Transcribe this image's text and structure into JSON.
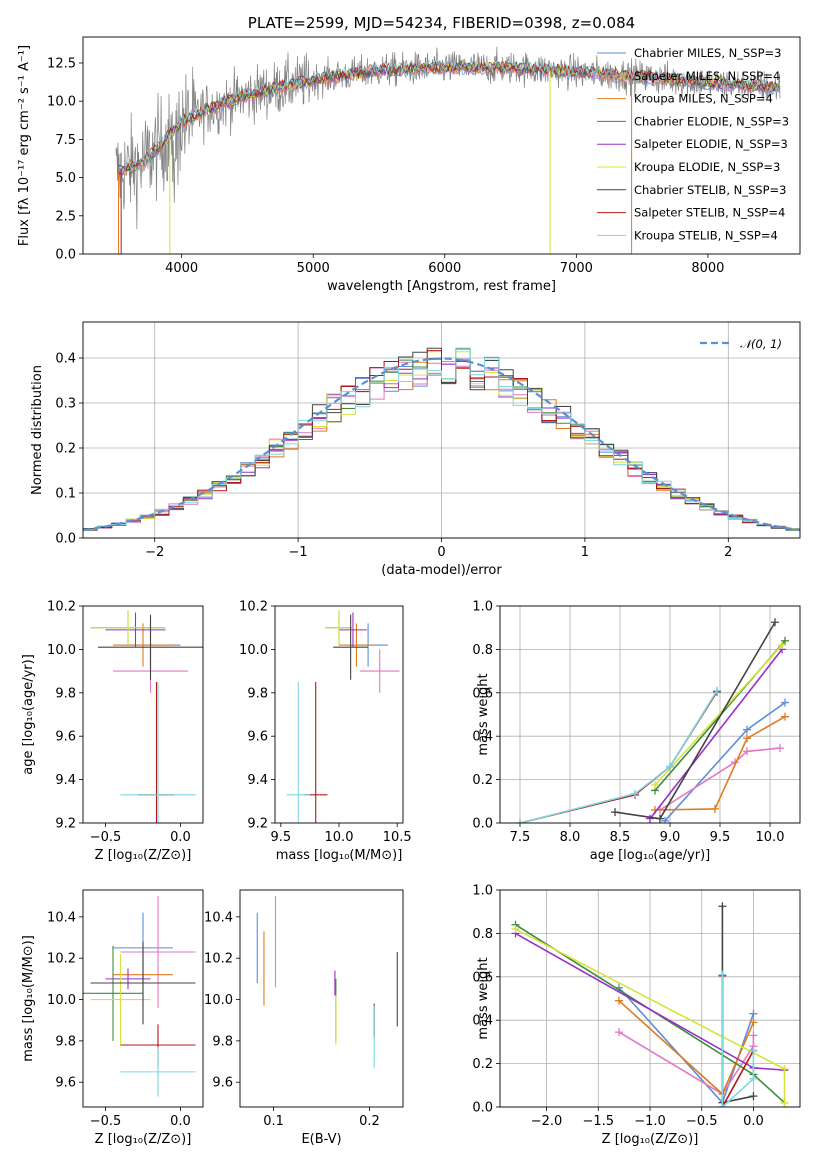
{
  "colors": {
    "chabrier_miles": "#5b8fd6",
    "salpeter_miles": "#e377c2",
    "kroupa_miles": "#e07b1f",
    "chabrier_elodie": "#3d8b3d",
    "salpeter_elodie": "#9b30c7",
    "kroupa_elodie": "#d6e43a",
    "chabrier_stelib": "#444444",
    "salpeter_stelib": "#b01818",
    "kroupa_stelib": "#7fd6e0",
    "observed": "#808080",
    "normal": "#5b8fd6"
  },
  "chart_data": [
    {
      "id": "spectrum",
      "type": "line",
      "title": "PLATE=2599, MJD=54234, FIBERID=0398, z=0.084",
      "xlabel": "wavelength [Angstrom, rest frame]",
      "ylabel": "Flux [fλ 10⁻¹⁷ erg cm⁻² s⁻¹ A⁻¹]",
      "xlim": [
        3250,
        8700
      ],
      "ylim": [
        0,
        14.2
      ],
      "xticks": [
        4000,
        5000,
        6000,
        7000,
        8000
      ],
      "yticks": [
        0.0,
        2.5,
        5.0,
        7.5,
        10.0,
        12.5
      ],
      "legend_position": "right",
      "continuum_points": [
        [
          3500,
          5.3
        ],
        [
          3700,
          5.9
        ],
        [
          3850,
          7.2
        ],
        [
          4000,
          8.6
        ],
        [
          4200,
          9.5
        ],
        [
          4500,
          10.4
        ],
        [
          5000,
          11.4
        ],
        [
          5500,
          12.0
        ],
        [
          6000,
          12.2
        ],
        [
          6500,
          12.2
        ],
        [
          7000,
          11.9
        ],
        [
          7500,
          11.6
        ],
        [
          8000,
          11.2
        ],
        [
          8500,
          10.9
        ]
      ],
      "series": [
        {
          "name": "Chabrier MILES, N_SSP=3",
          "color_key": "chabrier_miles"
        },
        {
          "name": "Salpeter MILES, N_SSP=4",
          "color_key": "salpeter_miles"
        },
        {
          "name": "Kroupa MILES, N_SSP=4",
          "color_key": "kroupa_miles"
        },
        {
          "name": "Chabrier ELODIE, N_SSP=3",
          "color_key": "chabrier_elodie"
        },
        {
          "name": "Salpeter ELODIE, N_SSP=3",
          "color_key": "salpeter_elodie"
        },
        {
          "name": "Kroupa ELODIE, N_SSP=3",
          "color_key": "kroupa_elodie"
        },
        {
          "name": "Chabrier STELIB, N_SSP=3",
          "color_key": "chabrier_stelib"
        },
        {
          "name": "Salpeter STELIB, N_SSP=4",
          "color_key": "salpeter_stelib"
        },
        {
          "name": "Kroupa STELIB, N_SSP=4",
          "color_key": "kroupa_stelib"
        }
      ]
    },
    {
      "id": "residuals",
      "type": "line",
      "title": "",
      "xlabel": "(data-model)/error",
      "ylabel": "Normed distribution",
      "xlim": [
        -2.5,
        2.5
      ],
      "ylim": [
        0,
        0.48
      ],
      "xticks": [
        -2,
        -1,
        0,
        1,
        2
      ],
      "yticks": [
        0.0,
        0.1,
        0.2,
        0.3,
        0.4
      ],
      "grid": true,
      "legend": "𝒩(0, 1)",
      "legend_position": "top-right",
      "histogram_color_keys": [
        "chabrier_miles",
        "salpeter_miles",
        "kroupa_miles",
        "chabrier_elodie",
        "salpeter_elodie",
        "kroupa_elodie",
        "chabrier_stelib",
        "salpeter_stelib",
        "kroupa_stelib"
      ]
    },
    {
      "id": "age_vs_Z",
      "type": "scatter",
      "xlabel": "Z [log₁₀(Z/Z⊙)]",
      "ylabel": "age  [log₁₀(age/yr)]",
      "xlim": [
        -0.65,
        0.15
      ],
      "ylim": [
        9.2,
        10.2
      ],
      "xticks": [
        -0.5,
        0.0
      ],
      "yticks": [
        9.2,
        9.4,
        9.6,
        9.8,
        10.0,
        10.2
      ],
      "points": [
        {
          "key": "chabrier_miles",
          "x": -0.2,
          "y": 10.02,
          "xerr": 0.2,
          "yerr": 0.1
        },
        {
          "key": "salpeter_miles",
          "x": -0.2,
          "y": 9.9,
          "xerr": 0.25,
          "yerr": 0.1
        },
        {
          "key": "kroupa_miles",
          "x": -0.25,
          "y": 10.02,
          "xerr": 0.2,
          "yerr": 0.1
        },
        {
          "key": "chabrier_elodie",
          "x": -0.35,
          "y": 10.1,
          "xerr": 0.25,
          "yerr": 0.08
        },
        {
          "key": "salpeter_elodie",
          "x": -0.3,
          "y": 10.09,
          "xerr": 0.2,
          "yerr": 0.08
        },
        {
          "key": "kroupa_elodie",
          "x": -0.35,
          "y": 10.1,
          "xerr": 0.25,
          "yerr": 0.08
        },
        {
          "key": "chabrier_stelib",
          "x": -0.2,
          "y": 10.01,
          "xerr": 0.35,
          "yerr": 0.15
        },
        {
          "key": "salpeter_stelib",
          "x": -0.16,
          "y": 9.33,
          "xerr": 0.12,
          "yerr": 0.52
        },
        {
          "key": "kroupa_stelib",
          "x": -0.15,
          "y": 9.33,
          "xerr": 0.25,
          "yerr": 0.52
        }
      ]
    },
    {
      "id": "age_vs_mass",
      "type": "scatter",
      "xlabel": "mass [log₁₀(M/M⊙)]",
      "ylabel": "",
      "xlim": [
        9.45,
        10.55
      ],
      "ylim": [
        9.2,
        10.2
      ],
      "xticks": [
        9.5,
        10.0,
        10.5
      ],
      "yticks": [
        9.2,
        9.4,
        9.6,
        9.8,
        10.0,
        10.2
      ],
      "points": [
        {
          "key": "chabrier_miles",
          "x": 10.25,
          "y": 10.02,
          "xerr": 0.17,
          "yerr": 0.1
        },
        {
          "key": "salpeter_miles",
          "x": 10.35,
          "y": 9.9,
          "xerr": 0.17,
          "yerr": 0.1
        },
        {
          "key": "kroupa_miles",
          "x": 10.15,
          "y": 10.02,
          "xerr": 0.15,
          "yerr": 0.1
        },
        {
          "key": "chabrier_elodie",
          "x": 10.0,
          "y": 10.1,
          "xerr": 0.12,
          "yerr": 0.08
        },
        {
          "key": "salpeter_elodie",
          "x": 10.12,
          "y": 10.09,
          "xerr": 0.12,
          "yerr": 0.08
        },
        {
          "key": "kroupa_elodie",
          "x": 10.0,
          "y": 10.1,
          "xerr": 0.12,
          "yerr": 0.08
        },
        {
          "key": "chabrier_stelib",
          "x": 10.1,
          "y": 10.01,
          "xerr": 0.15,
          "yerr": 0.15
        },
        {
          "key": "salpeter_stelib",
          "x": 9.8,
          "y": 9.33,
          "xerr": 0.1,
          "yerr": 0.52
        },
        {
          "key": "kroupa_stelib",
          "x": 9.65,
          "y": 9.33,
          "xerr": 0.1,
          "yerr": 0.52
        }
      ]
    },
    {
      "id": "mass_weight_vs_age",
      "type": "line",
      "xlabel": "age  [log₁₀(age/yr)]",
      "ylabel": "mass weight",
      "xlim": [
        7.3,
        10.3
      ],
      "ylim": [
        0,
        1.0
      ],
      "xticks": [
        7.5,
        8.0,
        8.5,
        9.0,
        9.5,
        10.0
      ],
      "yticks": [
        0.0,
        0.2,
        0.4,
        0.6,
        0.8,
        1.0
      ],
      "grid": true,
      "series": [
        {
          "key": "chabrier_miles",
          "x": [
            8.95,
            9.77,
            10.15
          ],
          "y": [
            0.01,
            0.43,
            0.555
          ]
        },
        {
          "key": "salpeter_miles",
          "x": [
            8.9,
            9.65,
            9.77,
            10.1
          ],
          "y": [
            0.06,
            0.28,
            0.33,
            0.345
          ]
        },
        {
          "key": "kroupa_miles",
          "x": [
            8.85,
            9.45,
            9.77,
            10.15
          ],
          "y": [
            0.06,
            0.065,
            0.39,
            0.49
          ]
        },
        {
          "key": "chabrier_elodie",
          "x": [
            8.85,
            10.15
          ],
          "y": [
            0.15,
            0.84
          ]
        },
        {
          "key": "salpeter_elodie",
          "x": [
            8.8,
            10.12
          ],
          "y": [
            0.02,
            0.8
          ]
        },
        {
          "key": "kroupa_elodie",
          "x": [
            8.85,
            10.12
          ],
          "y": [
            0.175,
            0.82
          ]
        },
        {
          "key": "chabrier_stelib",
          "x": [
            8.45,
            8.9,
            10.05
          ],
          "y": [
            0.05,
            0.02,
            0.925
          ]
        },
        {
          "key": "salpeter_stelib",
          "x": [
            7.5,
            8.65,
            9.0,
            9.47
          ],
          "y": [
            0.0,
            0.13,
            0.26,
            0.605
          ]
        },
        {
          "key": "kroupa_stelib",
          "x": [
            7.5,
            8.65,
            9.0,
            9.47
          ],
          "y": [
            0.0,
            0.135,
            0.26,
            0.61
          ]
        }
      ]
    },
    {
      "id": "mass_vs_Z",
      "type": "scatter",
      "xlabel": "Z [log₁₀(Z/Z⊙)]",
      "ylabel": "mass [log₁₀(M/M⊙)]",
      "xlim": [
        -0.65,
        0.15
      ],
      "ylim": [
        9.48,
        10.53
      ],
      "xticks": [
        -0.5,
        0.0
      ],
      "yticks": [
        9.6,
        9.8,
        10.0,
        10.2,
        10.4
      ],
      "points": [
        {
          "key": "chabrier_miles",
          "x": -0.25,
          "y": 10.25,
          "xerr": 0.2,
          "yerr": 0.17
        },
        {
          "key": "salpeter_miles",
          "x": -0.15,
          "y": 10.23,
          "xerr": 0.25,
          "yerr": 0.27
        },
        {
          "key": "kroupa_miles",
          "x": -0.25,
          "y": 10.12,
          "xerr": 0.2,
          "yerr": 0.15
        },
        {
          "key": "chabrier_elodie",
          "x": -0.45,
          "y": 10.03,
          "xerr": 0.2,
          "yerr": 0.23
        },
        {
          "key": "salpeter_elodie",
          "x": -0.35,
          "y": 10.1,
          "xerr": 0.15,
          "yerr": 0.05
        },
        {
          "key": "kroupa_elodie",
          "x": -0.4,
          "y": 10.0,
          "xerr": 0.2,
          "yerr": 0.22
        },
        {
          "key": "chabrier_stelib",
          "x": -0.25,
          "y": 10.08,
          "xerr": 0.35,
          "yerr": 0.2
        },
        {
          "key": "salpeter_stelib",
          "x": -0.15,
          "y": 9.78,
          "xerr": 0.25,
          "yerr": 0.1
        },
        {
          "key": "kroupa_stelib",
          "x": -0.15,
          "y": 9.65,
          "xerr": 0.25,
          "yerr": 0.12
        }
      ]
    },
    {
      "id": "mass_vs_EBV",
      "type": "scatter",
      "xlabel": "E(B-V)",
      "ylabel": "",
      "xlim": [
        0.065,
        0.235
      ],
      "ylim": [
        9.48,
        10.53
      ],
      "xticks": [
        0.1,
        0.2
      ],
      "yticks": [
        9.6,
        9.8,
        10.0,
        10.2,
        10.4
      ],
      "points": [
        {
          "key": "chabrier_miles",
          "x": 0.083,
          "y": 10.25,
          "yerr": 0.17
        },
        {
          "key": "salpeter_miles",
          "x": 0.102,
          "y": 10.28,
          "yerr": 0.22
        },
        {
          "key": "kroupa_miles",
          "x": 0.09,
          "y": 10.15,
          "yerr": 0.18
        },
        {
          "key": "chabrier_elodie",
          "x": 0.165,
          "y": 9.95,
          "yerr": 0.15
        },
        {
          "key": "salpeter_elodie",
          "x": 0.164,
          "y": 10.08,
          "yerr": 0.06
        },
        {
          "key": "kroupa_elodie",
          "x": 0.165,
          "y": 9.9,
          "yerr": 0.12
        },
        {
          "key": "chabrier_stelib",
          "x": 0.229,
          "y": 10.05,
          "yerr": 0.18
        },
        {
          "key": "salpeter_stelib",
          "x": 0.205,
          "y": 9.9,
          "yerr": 0.08
        },
        {
          "key": "kroupa_stelib",
          "x": 0.205,
          "y": 9.82,
          "yerr": 0.15
        }
      ]
    },
    {
      "id": "mass_weight_vs_Z",
      "type": "line",
      "xlabel": "Z [log₁₀(Z/Z⊙)]",
      "ylabel": "mass weight",
      "xlim": [
        -2.45,
        0.45
      ],
      "ylim": [
        0,
        1.0
      ],
      "xticks": [
        -2.0,
        -1.5,
        -1.0,
        -0.5,
        0.0
      ],
      "yticks": [
        0.0,
        0.2,
        0.4,
        0.6,
        0.8,
        1.0
      ],
      "grid": true,
      "series": [
        {
          "key": "chabrier_miles",
          "x": [
            -1.3,
            -0.3,
            0.0
          ],
          "y": [
            0.55,
            0.02,
            0.43
          ]
        },
        {
          "key": "salpeter_miles",
          "x": [
            -1.3,
            -0.3,
            0.0,
            0.0
          ],
          "y": [
            0.345,
            0.06,
            0.28,
            0.33
          ]
        },
        {
          "key": "kroupa_miles",
          "x": [
            -1.3,
            -0.3,
            0.0
          ],
          "y": [
            0.49,
            0.06,
            0.39
          ]
        },
        {
          "key": "chabrier_elodie",
          "x": [
            -2.3,
            0.0,
            0.3
          ],
          "y": [
            0.84,
            0.15,
            0.02
          ]
        },
        {
          "key": "salpeter_elodie",
          "x": [
            -2.3,
            0.0,
            0.3
          ],
          "y": [
            0.8,
            0.18,
            0.17
          ]
        },
        {
          "key": "kroupa_elodie",
          "x": [
            -2.3,
            0.3,
            0.3
          ],
          "y": [
            0.82,
            0.175,
            0.02
          ]
        },
        {
          "key": "chabrier_stelib",
          "x": [
            -0.3,
            -0.3,
            0.0
          ],
          "y": [
            0.925,
            0.02,
            0.05
          ]
        },
        {
          "key": "salpeter_stelib",
          "x": [
            -0.3,
            -0.3,
            0.0
          ],
          "y": [
            0.605,
            0.0,
            0.26
          ]
        },
        {
          "key": "kroupa_stelib",
          "x": [
            -0.3,
            -0.3,
            0.0,
            0.0
          ],
          "y": [
            0.61,
            0.0,
            0.13,
            0.26
          ]
        }
      ]
    }
  ]
}
